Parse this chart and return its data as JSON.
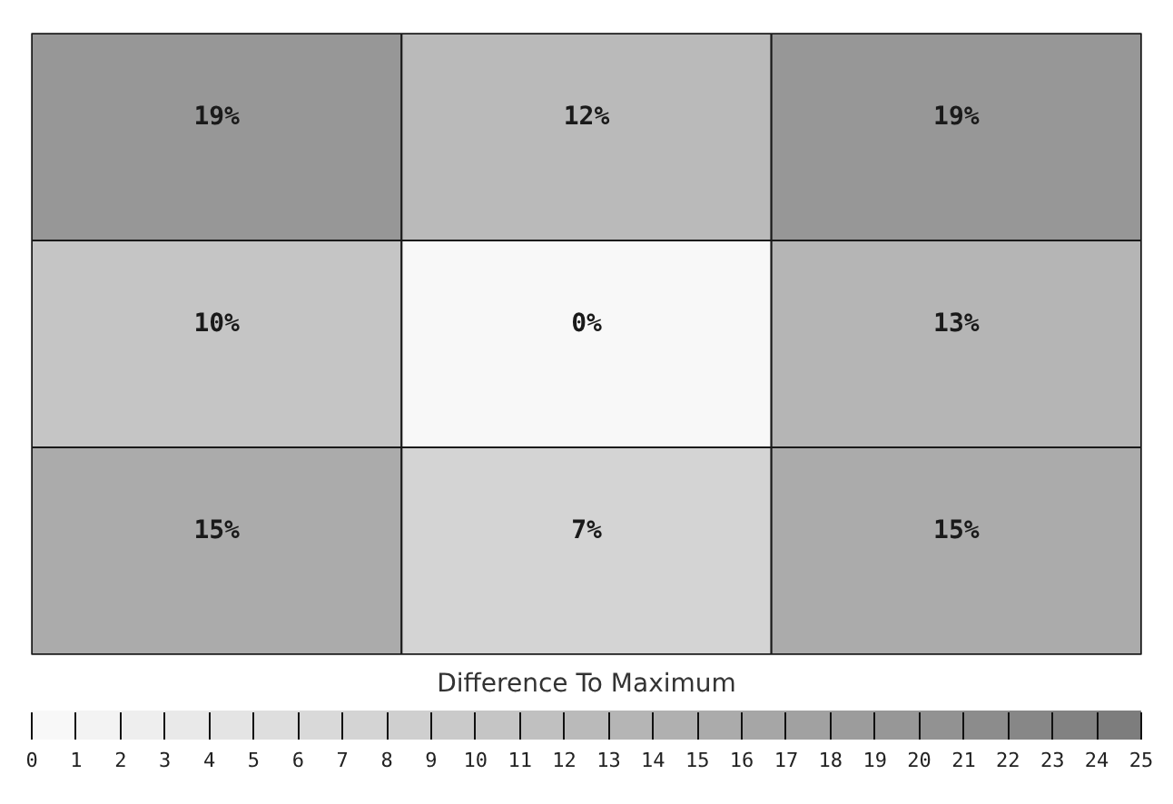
{
  "chart_data": {
    "type": "heatmap",
    "categories": [
      null,
      null,
      null
    ],
    "y_categories": [
      null,
      null,
      null
    ],
    "cells": [
      [
        19,
        12,
        19
      ],
      [
        10,
        0,
        13
      ],
      [
        15,
        7,
        15
      ]
    ],
    "cell_labels": [
      [
        "19%",
        "12%",
        "19%"
      ],
      [
        "10%",
        "0%",
        "13%"
      ],
      [
        "15%",
        "7%",
        "15%"
      ]
    ],
    "clabel": "Difference To Maximum",
    "clim": [
      0,
      25
    ],
    "cticks": [
      0,
      1,
      2,
      3,
      4,
      5,
      6,
      7,
      8,
      9,
      10,
      11,
      12,
      13,
      14,
      15,
      16,
      17,
      18,
      19,
      20,
      21,
      22,
      23,
      24,
      25
    ],
    "tick_labels": false
  }
}
